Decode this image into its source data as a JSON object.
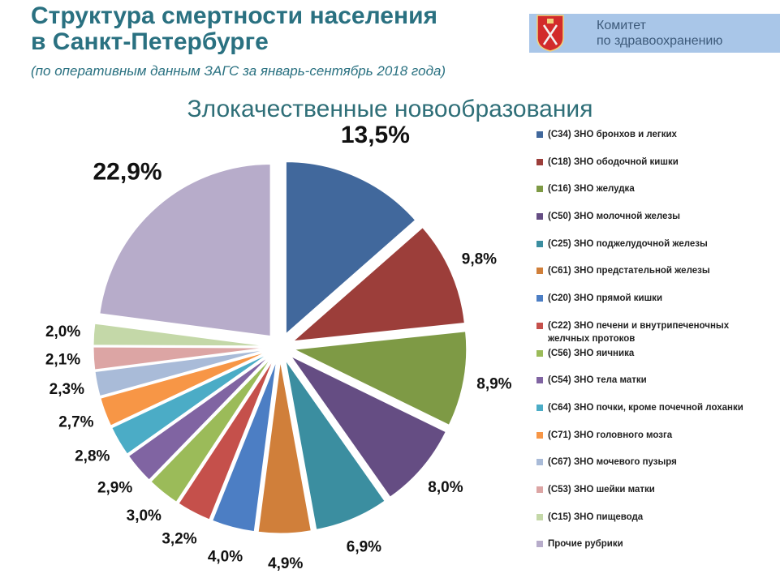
{
  "header": {
    "title_line1": "Структура смертности населения",
    "title_line2": "в Санкт-Петербурге",
    "subtitle": "(по оперативным данным ЗАГС за январь-сентябрь 2018 года)",
    "badge_line1": "Комитет",
    "badge_line2": "по здравоохранению",
    "badge_icon": "coat-of-arms-icon"
  },
  "chart_data": {
    "type": "pie",
    "title": "Злокачественные новообразования",
    "legend_position": "right",
    "labels": [
      "(С34) ЗНО бронхов и легких",
      "(С18) ЗНО ободочной кишки",
      "(С16) ЗНО желудка",
      "(С50) ЗНО молочной железы",
      "(С25) ЗНО поджелудочной железы",
      "(С61) ЗНО предстательной железы",
      "(С20) ЗНО прямой кишки",
      "(С22) ЗНО печени и внутрипеченочных желчных протоков",
      "(С56) ЗНО яичника",
      "(С54) ЗНО тела матки",
      "(С64) ЗНО почки, кроме почечной лоханки",
      "(С71) ЗНО головного мозга",
      "(С67) ЗНО мочевого пузыря",
      "(С53) ЗНО шейки матки",
      "(С15) ЗНО пищевода",
      "Прочие рубрики"
    ],
    "values": [
      13.5,
      9.8,
      8.9,
      8.0,
      6.9,
      4.9,
      4.0,
      3.2,
      3.0,
      2.9,
      2.8,
      2.7,
      2.3,
      2.1,
      2.0,
      22.9
    ],
    "value_labels": [
      "13,5%",
      "9,8%",
      "8,9%",
      "8,0%",
      "6,9%",
      "4,9%",
      "4,0%",
      "3,2%",
      "3,0%",
      "2,9%",
      "2,8%",
      "2,7%",
      "2,3%",
      "2,1%",
      "2,0%",
      "22,9%"
    ],
    "colors": [
      "#41689c",
      "#9c3e3a",
      "#7e9a45",
      "#654d83",
      "#3b8ea0",
      "#d07f3a",
      "#4c7ec4",
      "#c5504b",
      "#9bbb59",
      "#8064a2",
      "#4bacc6",
      "#f79646",
      "#a9bbd8",
      "#dca5a4",
      "#c4d8a8",
      "#b7acca"
    ]
  }
}
